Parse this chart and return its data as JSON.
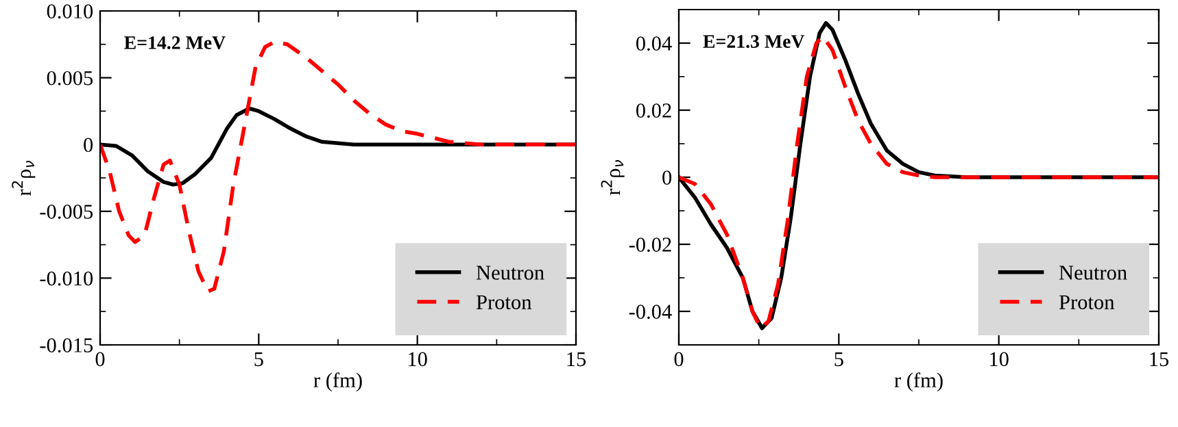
{
  "chart_data": [
    {
      "type": "line",
      "annotations": [
        "E=14.2 MeV"
      ],
      "xlabel": "r (fm)",
      "ylabel": "r$^{2}$ρ$_{ν}$",
      "xlim": [
        0,
        15
      ],
      "xticks": [
        0,
        5,
        10,
        15
      ],
      "ylim": [
        -0.015,
        0.01
      ],
      "yticks": [
        {
          "value": -0.015,
          "label": "-0.015"
        },
        {
          "value": -0.01,
          "label": "-0.010"
        },
        {
          "value": -0.005,
          "label": "-0.005"
        },
        {
          "value": 0,
          "label": "0"
        },
        {
          "value": 0.005,
          "label": "0.005"
        },
        {
          "value": 0.01,
          "label": "0.010"
        }
      ],
      "legend": "bottom right",
      "grid": false,
      "series": [
        {
          "name": "Neutron",
          "color": "#000000",
          "line_style": "solid",
          "x": [
            0,
            0.5,
            1,
            1.5,
            2,
            2.3,
            2.6,
            3,
            3.5,
            4,
            4.3,
            4.7,
            5,
            5.5,
            6,
            6.5,
            7,
            7.5,
            8,
            10,
            15
          ],
          "values": [
            0,
            -0.0001,
            -0.0008,
            -0.002,
            -0.0028,
            -0.003,
            -0.0029,
            -0.0022,
            -0.001,
            0.0012,
            0.0022,
            0.0027,
            0.0025,
            0.0019,
            0.0012,
            0.0006,
            0.0002,
            0.0001,
            0,
            0,
            0
          ]
        },
        {
          "name": "Proton",
          "color": "#ff0000",
          "line_style": "dashed",
          "x": [
            0,
            0.3,
            0.6,
            0.9,
            1.1,
            1.4,
            1.7,
            2,
            2.2,
            2.5,
            2.8,
            3.1,
            3.4,
            3.6,
            3.9,
            4.2,
            4.6,
            4.9,
            5.2,
            5.5,
            5.9,
            6.5,
            7,
            7.5,
            8,
            8.5,
            9,
            9.5,
            10,
            10.5,
            11,
            11.5,
            12,
            15
          ],
          "values": [
            0,
            -0.002,
            -0.005,
            -0.0068,
            -0.0073,
            -0.0068,
            -0.004,
            -0.0015,
            -0.0012,
            -0.003,
            -0.0065,
            -0.0095,
            -0.011,
            -0.0108,
            -0.008,
            -0.003,
            0.002,
            0.0058,
            0.0073,
            0.0077,
            0.0075,
            0.0065,
            0.0055,
            0.0045,
            0.0033,
            0.0023,
            0.0015,
            0.001,
            0.0008,
            0.0005,
            0.0002,
            0.0001,
            0,
            0
          ]
        }
      ]
    },
    {
      "type": "line",
      "annotations": [
        "E=21.3 MeV"
      ],
      "xlabel": "r (fm)",
      "ylabel": "r$^{2}$ρ$_{ν}$",
      "xlim": [
        0,
        15
      ],
      "xticks": [
        0,
        5,
        10,
        15
      ],
      "ylim": [
        -0.05,
        0.05
      ],
      "yticks": [
        -0.04,
        -0.02,
        0,
        0.02,
        0.04
      ],
      "legend": "bottom right",
      "grid": false,
      "series": [
        {
          "name": "Neutron",
          "color": "#000000",
          "line_style": "solid",
          "x": [
            0,
            0.5,
            1,
            1.5,
            2,
            2.3,
            2.6,
            2.9,
            3.2,
            3.5,
            3.8,
            4.1,
            4.4,
            4.6,
            4.8,
            5.2,
            5.6,
            6,
            6.5,
            7,
            7.5,
            8,
            9,
            15
          ],
          "values": [
            0,
            -0.006,
            -0.014,
            -0.021,
            -0.03,
            -0.04,
            -0.045,
            -0.042,
            -0.03,
            -0.012,
            0.01,
            0.03,
            0.043,
            0.046,
            0.044,
            0.035,
            0.025,
            0.016,
            0.008,
            0.004,
            0.0015,
            0.0005,
            0,
            0
          ]
        },
        {
          "name": "Proton",
          "color": "#ff0000",
          "line_style": "dashed",
          "x": [
            0,
            0.5,
            1,
            1.5,
            2,
            2.3,
            2.55,
            2.8,
            3.1,
            3.4,
            3.7,
            4,
            4.3,
            4.5,
            4.8,
            5.2,
            5.6,
            6,
            6.5,
            7,
            7.5,
            8,
            15
          ],
          "values": [
            0,
            -0.002,
            -0.008,
            -0.017,
            -0.03,
            -0.04,
            -0.045,
            -0.043,
            -0.032,
            -0.013,
            0.01,
            0.03,
            0.04,
            0.042,
            0.038,
            0.027,
            0.017,
            0.01,
            0.004,
            0.0015,
            0.0005,
            0,
            0
          ]
        }
      ]
    }
  ]
}
